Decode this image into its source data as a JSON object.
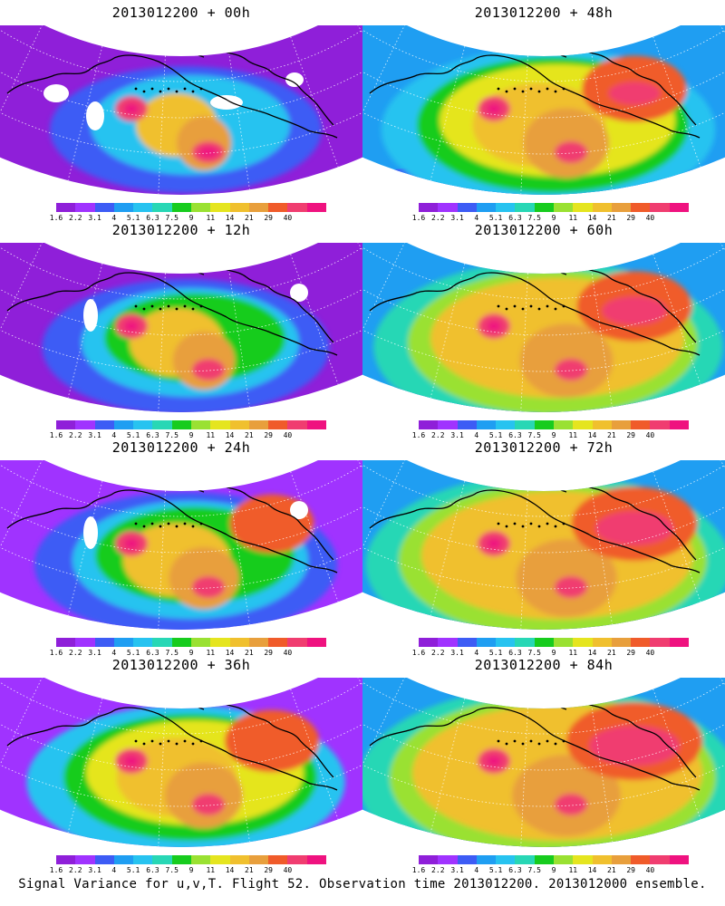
{
  "caption": "Signal Variance for u,v,T. Flight 52. Observation time 2013012200. 2013012000 ensemble.",
  "colorbar": {
    "labels": [
      "1.6",
      "2.2",
      "3.1",
      "4",
      "5.1",
      "6.3",
      "7.5",
      "9",
      "11",
      "14",
      "21",
      "29",
      "40"
    ],
    "colors": [
      "#8f1fd9",
      "#a033ff",
      "#3d5cf5",
      "#1f9ef2",
      "#27c3f0",
      "#28d7b5",
      "#17cc1e",
      "#9ae132",
      "#e5e51f",
      "#f0c02e",
      "#e89f3c",
      "#f05b2a",
      "#f03d70",
      "#ef127f"
    ]
  },
  "panels": [
    {
      "title": "2013012200 + 00h",
      "lead_hours": 0
    },
    {
      "title": "2013012200 + 48h",
      "lead_hours": 48
    },
    {
      "title": "2013012200 + 12h",
      "lead_hours": 12
    },
    {
      "title": "2013012200 + 60h",
      "lead_hours": 60
    },
    {
      "title": "2013012200 + 24h",
      "lead_hours": 24
    },
    {
      "title": "2013012200 + 72h",
      "lead_hours": 72
    },
    {
      "title": "2013012200 + 36h",
      "lead_hours": 36
    },
    {
      "title": "2013012200 + 84h",
      "lead_hours": 84
    }
  ]
}
